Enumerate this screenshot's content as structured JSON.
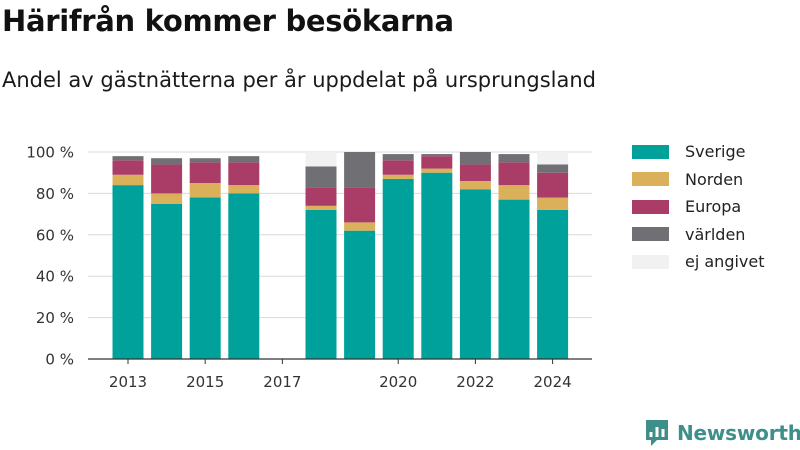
{
  "title": "Härifrån kommer besökarna",
  "subtitle": "Andel av gästnätterna per år uppdelat på ursprungsland",
  "brand": "Newsworthy",
  "chart_data": {
    "type": "bar",
    "stacked": true,
    "categories": [
      2013,
      2014,
      2015,
      2016,
      2017,
      2018,
      2019,
      2020,
      2021,
      2022,
      2023,
      2024
    ],
    "x_ticks": [
      "2013",
      "2015",
      "2017",
      "2020",
      "2022",
      "2024"
    ],
    "y_ticks": [
      "0 %",
      "20 %",
      "40 %",
      "60 %",
      "80 %",
      "100 %"
    ],
    "ylim": [
      0,
      100
    ],
    "grid": true,
    "legend_position": "right",
    "series": [
      {
        "name": "Sverige",
        "color": "#00a19a",
        "values": [
          84,
          75,
          78,
          80,
          null,
          72,
          62,
          87,
          90,
          82,
          77,
          72
        ]
      },
      {
        "name": "Norden",
        "color": "#dbb05a",
        "values": [
          5,
          5,
          7,
          4,
          null,
          2,
          4,
          2,
          2,
          4,
          7,
          6
        ]
      },
      {
        "name": "Europa",
        "color": "#a93d67",
        "values": [
          7,
          14,
          10,
          11,
          null,
          9,
          17,
          7,
          6,
          8,
          11,
          12
        ]
      },
      {
        "name": "världen",
        "color": "#707074",
        "values": [
          2,
          3,
          2,
          3,
          null,
          10,
          17,
          3,
          1,
          6,
          4,
          4
        ]
      },
      {
        "name": "ej angivet",
        "color": "#f1f1f1",
        "values": [
          0,
          0,
          0,
          0,
          null,
          7,
          0,
          0,
          0,
          0,
          0,
          6
        ]
      }
    ]
  }
}
